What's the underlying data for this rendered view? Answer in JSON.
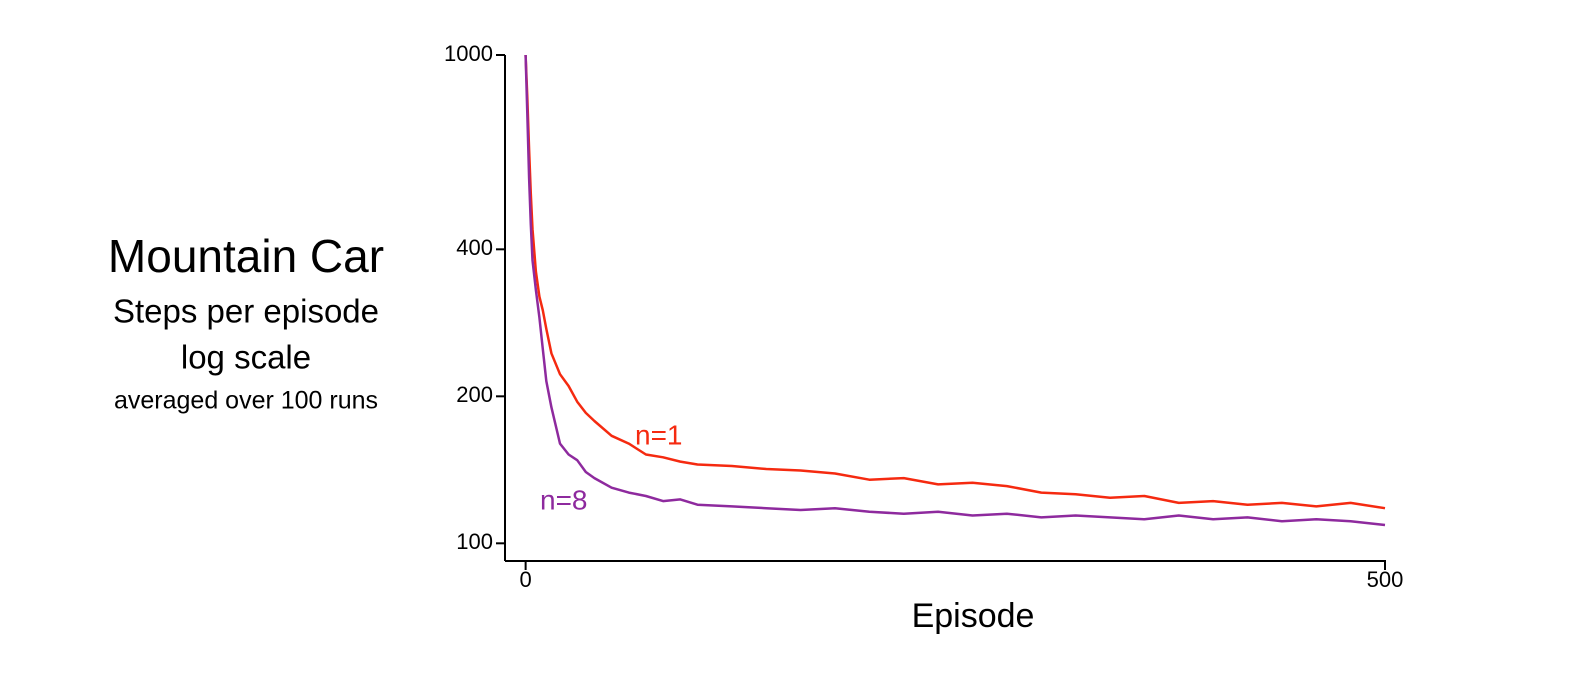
{
  "chart_data": {
    "type": "line",
    "title": "Mountain Car",
    "subtitle": [
      "Steps per episode",
      "log scale",
      "averaged over 100 runs"
    ],
    "x_label": "Episode",
    "x": [
      0,
      1,
      2,
      3,
      4,
      6,
      8,
      10,
      12,
      15,
      20,
      25,
      30,
      35,
      40,
      50,
      60,
      70,
      80,
      90,
      100,
      120,
      140,
      160,
      180,
      200,
      220,
      240,
      260,
      280,
      300,
      320,
      340,
      360,
      380,
      400,
      420,
      440,
      460,
      480,
      500
    ],
    "series": [
      {
        "name": "n=1",
        "color": "#f52a10",
        "values": [
          1000,
          820,
          640,
          520,
          440,
          360,
          320,
          300,
          275,
          245,
          222,
          210,
          195,
          185,
          178,
          166,
          160,
          152,
          150,
          147,
          145,
          144,
          142,
          141,
          139,
          135,
          136,
          132,
          133,
          131,
          127,
          126,
          124,
          125,
          121,
          122,
          120,
          121,
          119,
          121,
          118
        ]
      },
      {
        "name": "n=8",
        "color": "#8e2a9e",
        "values": [
          1000,
          760,
          560,
          450,
          380,
          330,
          290,
          250,
          215,
          190,
          160,
          152,
          148,
          140,
          136,
          130,
          127,
          125,
          122,
          123,
          120,
          119,
          118,
          117,
          118,
          116,
          115,
          116,
          114,
          115,
          113,
          114,
          113,
          112,
          114,
          112,
          113,
          111,
          112,
          111,
          109
        ]
      }
    ],
    "xlim": [
      -12,
      500
    ],
    "xticks": [
      0,
      500
    ],
    "ylim": [
      92,
      1000
    ],
    "yticks": [
      100,
      200,
      400,
      1000
    ],
    "y_log": true,
    "grid": false
  }
}
